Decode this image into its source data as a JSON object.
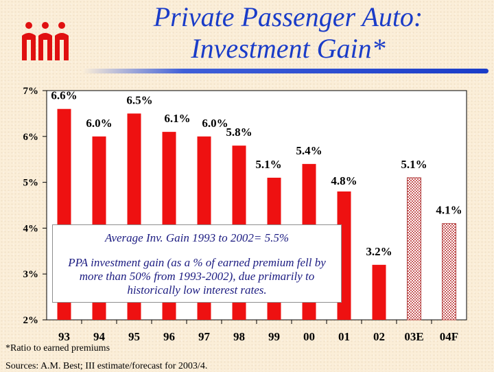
{
  "title": {
    "line1": "Private Passenger Auto:",
    "line2": "Investment Gain*"
  },
  "logo": {
    "text": "iii"
  },
  "colors": {
    "bar": "#ee1111",
    "title": "#1a3cc8",
    "callout_text": "#1a1a80"
  },
  "chart_data": {
    "type": "bar",
    "title": "Private Passenger Auto: Investment Gain*",
    "xlabel": "",
    "ylabel": "",
    "categories": [
      "93",
      "94",
      "95",
      "96",
      "97",
      "98",
      "99",
      "00",
      "01",
      "02",
      "03E",
      "04F"
    ],
    "values": [
      6.6,
      6.0,
      6.5,
      6.1,
      6.0,
      5.8,
      5.1,
      5.4,
      4.8,
      3.2,
      5.1,
      4.1
    ],
    "labels": [
      "6.6%",
      "6.0%",
      "6.5%",
      "6.1%",
      "6.0%",
      "5.8%",
      "5.1%",
      "5.4%",
      "4.8%",
      "3.2%",
      "5.1%",
      "4.1%"
    ],
    "estimated": [
      false,
      false,
      false,
      false,
      false,
      false,
      false,
      false,
      false,
      false,
      true,
      true
    ],
    "ylim": [
      2,
      7
    ],
    "yticks": [
      2,
      3,
      4,
      5,
      6,
      7
    ],
    "ytick_labels": [
      "2%",
      "3%",
      "4%",
      "5%",
      "6%",
      "7%"
    ],
    "grid": false
  },
  "callout": {
    "average": "Average Inv. Gain 1993 to 2002= 5.5%",
    "note": "PPA investment gain (as a % of earned premium fell by more than 50% from 1993-2002), due primarily to historically low interest rates."
  },
  "footnote": "*Ratio to earned premiums",
  "sources": "Sources: A.M. Best; III estimate/forecast for 2003/4."
}
